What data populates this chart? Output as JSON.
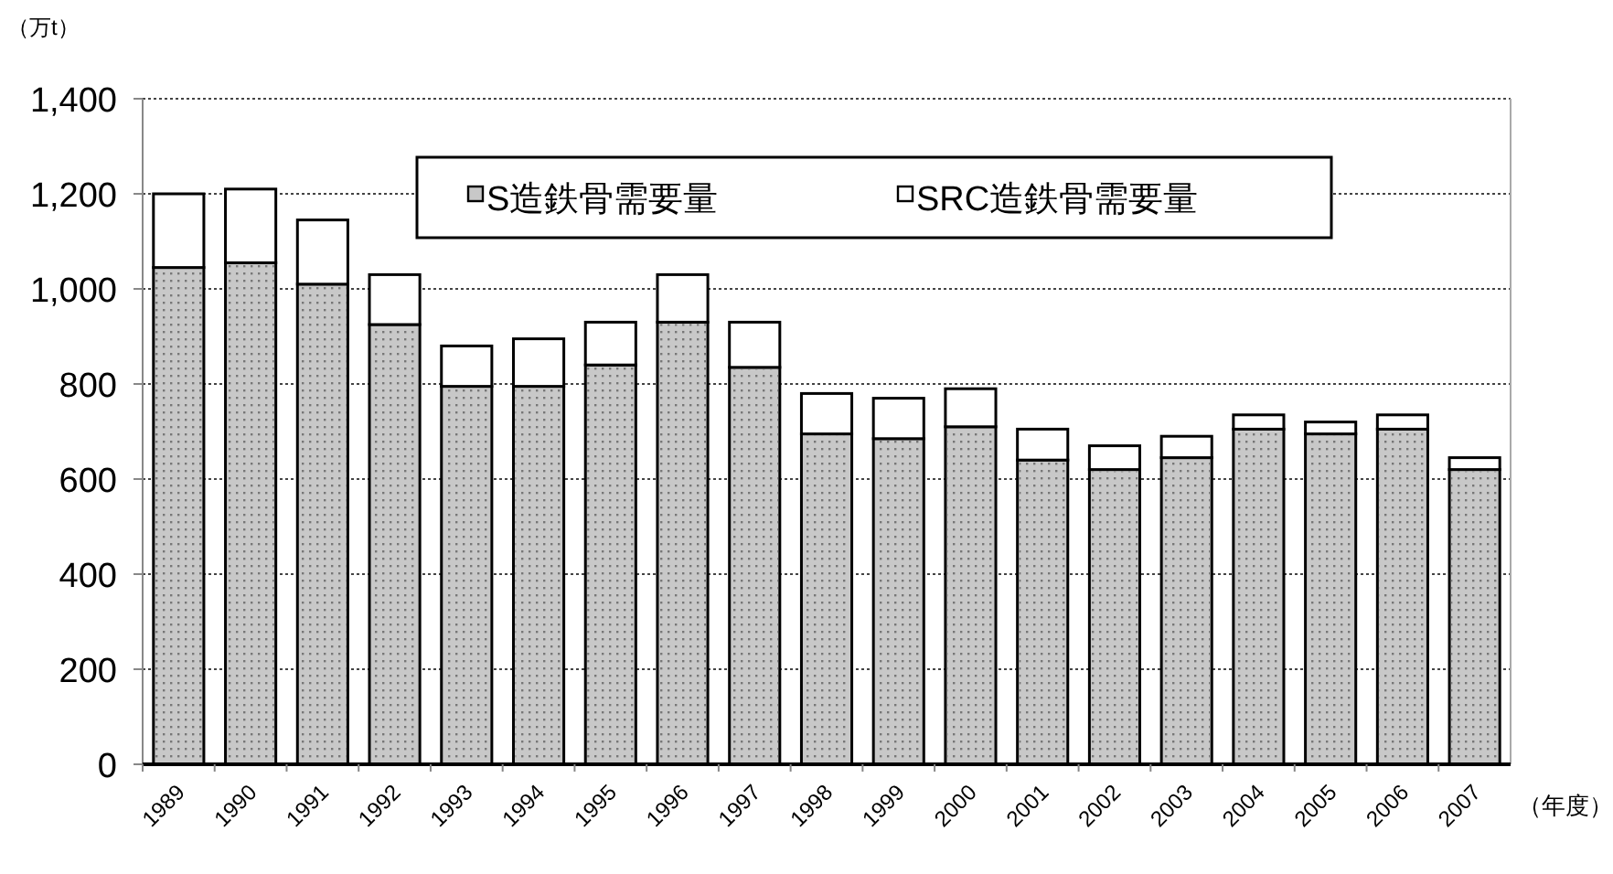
{
  "chart_data": {
    "type": "bar",
    "stacked": true,
    "ylabel": "（万t）",
    "xlabel": "（年度）",
    "categories": [
      "1989",
      "1990",
      "1991",
      "1992",
      "1993",
      "1994",
      "1995",
      "1996",
      "1997",
      "1998",
      "1999",
      "2000",
      "2001",
      "2002",
      "2003",
      "2004",
      "2005",
      "2006",
      "2007"
    ],
    "series": [
      {
        "name": "S造鉄骨需要量",
        "color": "#c8c8c8",
        "values": [
          1045,
          1055,
          1010,
          925,
          795,
          795,
          840,
          930,
          835,
          695,
          685,
          710,
          640,
          620,
          645,
          705,
          695,
          705,
          620
        ]
      },
      {
        "name": "SRC造鉄骨需要量",
        "color": "#ffffff",
        "values": [
          155,
          155,
          135,
          105,
          85,
          100,
          90,
          100,
          95,
          85,
          85,
          80,
          65,
          50,
          45,
          30,
          25,
          30,
          25
        ]
      }
    ],
    "ylim": [
      0,
      1400
    ],
    "yticks": [
      0,
      200,
      400,
      600,
      800,
      {
        "value": 1000,
        "label": "1,000"
      },
      {
        "value": 1200,
        "label": "1,200"
      },
      {
        "value": 1400,
        "label": "1,400"
      }
    ],
    "grid": "y",
    "legend": "top"
  }
}
